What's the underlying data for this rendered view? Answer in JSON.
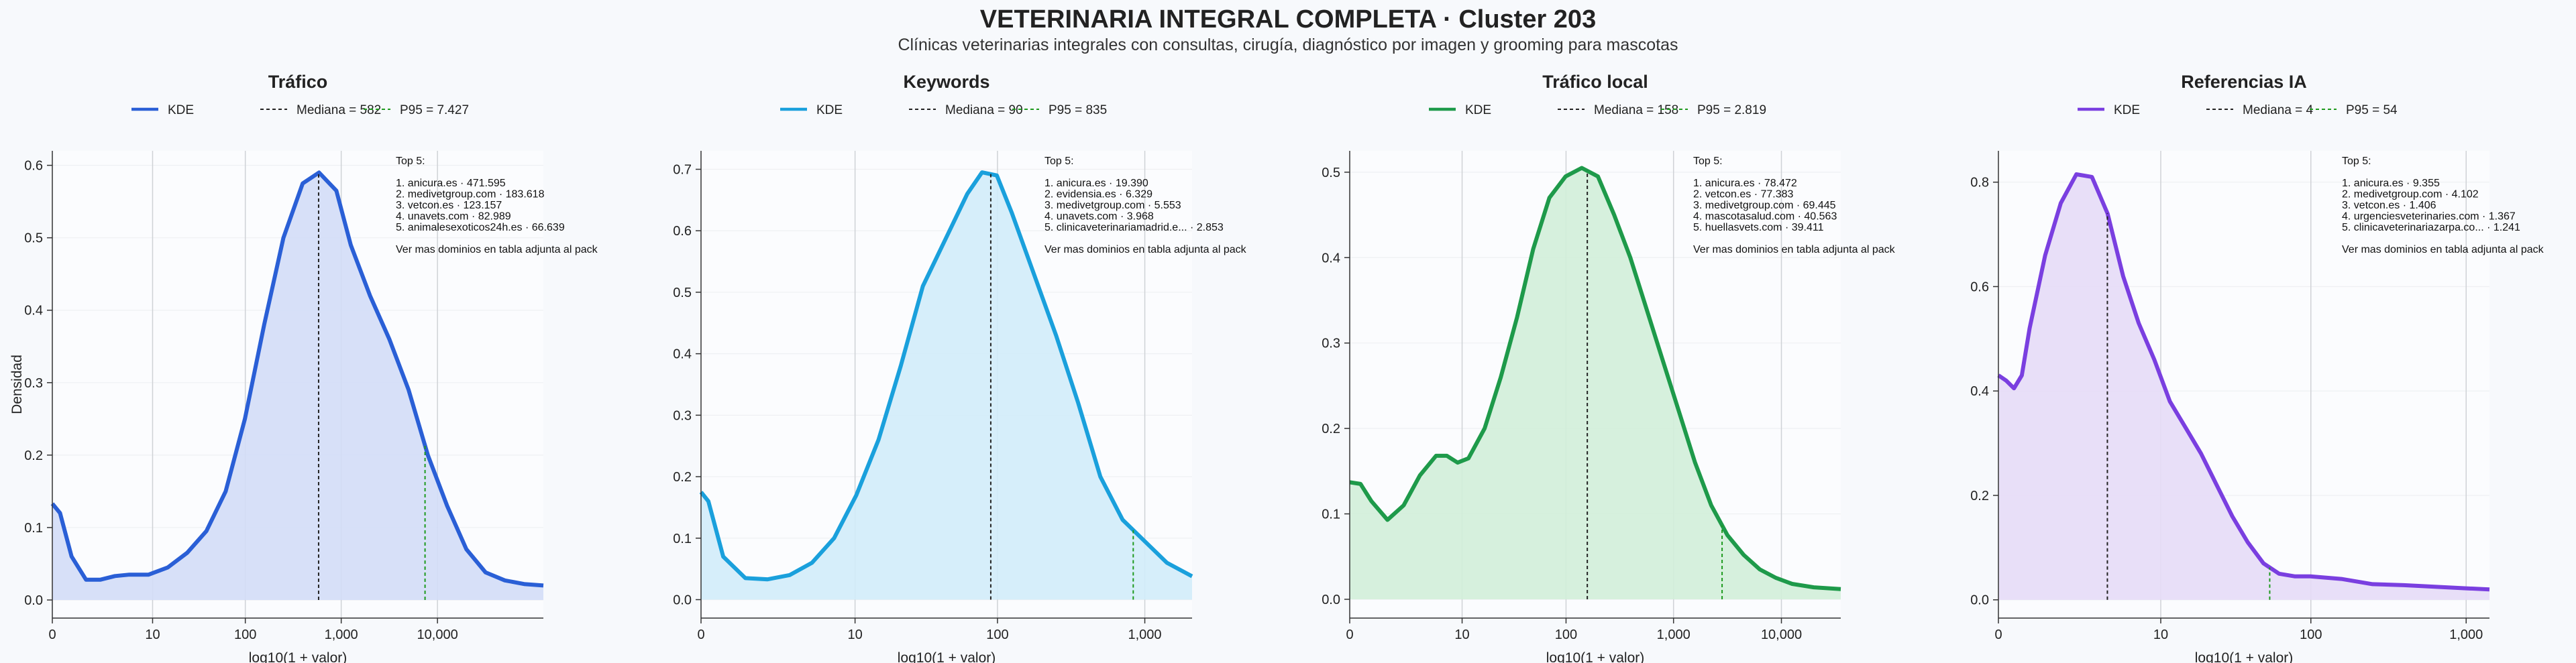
{
  "header": {
    "title": "VETERINARIA INTEGRAL COMPLETA · Cluster 203",
    "subtitle": "Clínicas veterinarias integrales con consultas, cirugía, diagnóstico por imagen y grooming para mascotas"
  },
  "chart_data": [
    {
      "type": "area",
      "title": "Tráfico",
      "xlabel": "log10(1 + valor)",
      "ylabel": "Densidad",
      "color": "#2a5fd6",
      "fill": "#d3ddf7",
      "x_scale": "log10(1+x)",
      "xlim": [
        0,
        5.1
      ],
      "ylim": [
        -0.025,
        0.62
      ],
      "xticks": [
        0,
        10,
        100,
        1000,
        10000
      ],
      "xtick_labels": [
        "0",
        "10",
        "100",
        "1,000",
        "10,000"
      ],
      "yticks": [
        0.0,
        0.1,
        0.2,
        0.3,
        0.4,
        0.5,
        0.6
      ],
      "ytick_labels": [
        "0.0",
        "0.1",
        "0.2",
        "0.3",
        "0.4",
        "0.5",
        "0.6"
      ],
      "grid": true,
      "legend": {
        "position": "top",
        "entries": [
          "KDE",
          "Mediana = 582",
          "P95 = 7.427"
        ]
      },
      "median": 582,
      "p95": 7427,
      "kde": {
        "x": [
          0,
          0.08,
          0.2,
          0.35,
          0.5,
          0.65,
          0.8,
          1.0,
          1.2,
          1.4,
          1.6,
          1.8,
          2.0,
          2.2,
          2.4,
          2.6,
          2.77,
          2.95,
          3.1,
          3.3,
          3.5,
          3.7,
          3.9,
          4.1,
          4.3,
          4.5,
          4.7,
          4.9,
          5.1
        ],
        "y": [
          0.133,
          0.12,
          0.06,
          0.028,
          0.028,
          0.033,
          0.035,
          0.035,
          0.045,
          0.065,
          0.095,
          0.15,
          0.25,
          0.38,
          0.5,
          0.575,
          0.59,
          0.565,
          0.49,
          0.42,
          0.36,
          0.29,
          0.2,
          0.13,
          0.07,
          0.038,
          0.027,
          0.022,
          0.02
        ]
      },
      "annotation": [
        "Top 5:",
        "",
        "1. anicura.es · 471.595",
        "2. medivetgroup.com · 183.618",
        "3. vetcon.es · 123.157",
        "4. unavets.com · 82.989",
        "5. animalesexoticos24h.es · 66.639",
        "",
        "Ver mas dominios en tabla adjunta al pack"
      ]
    },
    {
      "type": "area",
      "title": "Keywords",
      "xlabel": "log10(1 + valor)",
      "ylabel": "",
      "color": "#1aa0dc",
      "fill": "#d2ecfa",
      "x_scale": "log10(1+x)",
      "xlim": [
        0,
        3.32
      ],
      "ylim": [
        -0.03,
        0.73
      ],
      "xticks": [
        0,
        10,
        100,
        1000
      ],
      "xtick_labels": [
        "0",
        "10",
        "100",
        "1,000"
      ],
      "yticks": [
        0.0,
        0.1,
        0.2,
        0.3,
        0.4,
        0.5,
        0.6,
        0.7
      ],
      "ytick_labels": [
        "0.0",
        "0.1",
        "0.2",
        "0.3",
        "0.4",
        "0.5",
        "0.6",
        "0.7"
      ],
      "grid": true,
      "legend": {
        "position": "top",
        "entries": [
          "KDE",
          "Mediana = 90",
          "P95 = 835"
        ]
      },
      "median": 90,
      "p95": 835,
      "kde": {
        "x": [
          0,
          0.05,
          0.15,
          0.3,
          0.45,
          0.6,
          0.75,
          0.9,
          1.05,
          1.2,
          1.35,
          1.5,
          1.65,
          1.8,
          1.9,
          2.0,
          2.1,
          2.25,
          2.4,
          2.55,
          2.7,
          2.85,
          3.0,
          3.15,
          3.32
        ],
        "y": [
          0.175,
          0.16,
          0.07,
          0.035,
          0.033,
          0.04,
          0.06,
          0.1,
          0.17,
          0.26,
          0.38,
          0.51,
          0.585,
          0.66,
          0.695,
          0.69,
          0.63,
          0.53,
          0.43,
          0.32,
          0.2,
          0.13,
          0.095,
          0.06,
          0.038
        ]
      },
      "annotation": [
        "Top 5:",
        "",
        "1. anicura.es · 19.390",
        "2. evidensia.es · 6.329",
        "3. medivetgroup.com · 5.553",
        "4. unavets.com · 3.968",
        "5. clinicaveterinariamadrid.e... · 2.853",
        "",
        "Ver mas dominios en tabla adjunta al pack"
      ]
    },
    {
      "type": "area",
      "title": "Tráfico local",
      "xlabel": "log10(1 + valor)",
      "ylabel": "",
      "color": "#1e9a4a",
      "fill": "#d2eed9",
      "x_scale": "log10(1+x)",
      "xlim": [
        0,
        4.55
      ],
      "ylim": [
        -0.022,
        0.525
      ],
      "xticks": [
        0,
        10,
        100,
        1000,
        10000
      ],
      "xtick_labels": [
        "0",
        "10",
        "100",
        "1,000",
        "10,000"
      ],
      "yticks": [
        0.0,
        0.1,
        0.2,
        0.3,
        0.4,
        0.5
      ],
      "ytick_labels": [
        "0.0",
        "0.1",
        "0.2",
        "0.3",
        "0.4",
        "0.5"
      ],
      "grid": true,
      "legend": {
        "position": "top",
        "entries": [
          "KDE",
          "Mediana = 158",
          "P95 = 2.819"
        ]
      },
      "median": 158,
      "p95": 2819,
      "kde": {
        "x": [
          0,
          0.1,
          0.2,
          0.35,
          0.5,
          0.65,
          0.8,
          0.9,
          1.0,
          1.1,
          1.25,
          1.4,
          1.55,
          1.7,
          1.85,
          2.0,
          2.15,
          2.3,
          2.45,
          2.6,
          2.75,
          2.9,
          3.05,
          3.2,
          3.35,
          3.5,
          3.65,
          3.8,
          3.95,
          4.1,
          4.3,
          4.55
        ],
        "y": [
          0.137,
          0.135,
          0.115,
          0.093,
          0.11,
          0.145,
          0.168,
          0.168,
          0.16,
          0.165,
          0.2,
          0.26,
          0.33,
          0.41,
          0.47,
          0.495,
          0.505,
          0.495,
          0.45,
          0.4,
          0.34,
          0.28,
          0.22,
          0.16,
          0.11,
          0.075,
          0.052,
          0.035,
          0.025,
          0.018,
          0.014,
          0.012
        ]
      },
      "annotation": [
        "Top 5:",
        "",
        "1. anicura.es · 78.472",
        "2. vetcon.es · 77.383",
        "3. medivetgroup.com · 69.445",
        "4. mascotasalud.com · 40.563",
        "5. huellasvets.com · 39.411",
        "",
        "Ver mas dominios en tabla adjunta al pack"
      ]
    },
    {
      "type": "area",
      "title": "Referencias IA",
      "xlabel": "log10(1 + valor)",
      "ylabel": "",
      "color": "#7a3fe0",
      "fill": "#e6dcf7",
      "x_scale": "log10(1+x)",
      "xlim": [
        0,
        3.15
      ],
      "ylim": [
        -0.035,
        0.86
      ],
      "xticks": [
        0,
        10,
        100,
        1000
      ],
      "xtick_labels": [
        "0",
        "10",
        "100",
        "1,000"
      ],
      "yticks": [
        0.0,
        0.2,
        0.4,
        0.6,
        0.8
      ],
      "ytick_labels": [
        "0.0",
        "0.2",
        "0.4",
        "0.6",
        "0.8"
      ],
      "grid": true,
      "legend": {
        "position": "top",
        "entries": [
          "KDE",
          "Mediana = 4",
          "P95 = 54"
        ]
      },
      "median": 4,
      "p95": 54,
      "kde": {
        "x": [
          0,
          0.05,
          0.1,
          0.15,
          0.2,
          0.3,
          0.4,
          0.5,
          0.6,
          0.7,
          0.8,
          0.9,
          1.0,
          1.1,
          1.2,
          1.3,
          1.4,
          1.5,
          1.6,
          1.7,
          1.8,
          1.9,
          2.0,
          2.2,
          2.4,
          2.6,
          2.8,
          3.0,
          3.15
        ],
        "y": [
          0.43,
          0.42,
          0.405,
          0.43,
          0.52,
          0.66,
          0.76,
          0.815,
          0.81,
          0.74,
          0.62,
          0.53,
          0.46,
          0.38,
          0.33,
          0.28,
          0.22,
          0.16,
          0.11,
          0.07,
          0.05,
          0.045,
          0.045,
          0.04,
          0.03,
          0.028,
          0.025,
          0.022,
          0.02
        ]
      },
      "annotation": [
        "Top 5:",
        "",
        "1. anicura.es · 9.355",
        "2. medivetgroup.com · 4.102",
        "3. vetcon.es · 1.406",
        "4. urgenciesveterinaries.com · 1.367",
        "5. clinicaveterinariazarpa.co... · 1.241",
        "",
        "Ver mas dominios en tabla adjunta al pack"
      ]
    }
  ]
}
